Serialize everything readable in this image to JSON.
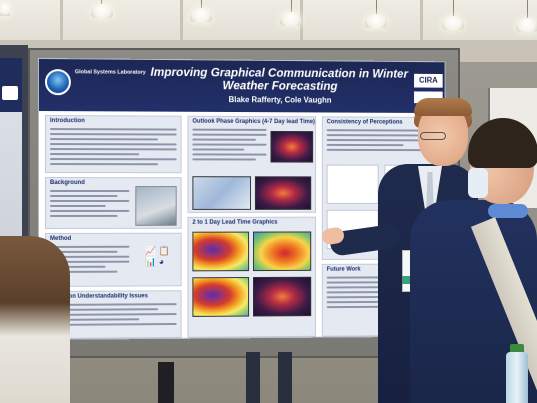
{
  "poster": {
    "title": "Improving Graphical Communication in Winter Weather Forecasting",
    "authors": "Blake Rafferty, Cole Vaughn",
    "org_label": "Global Systems Laboratory",
    "partner_logo_text": "CIRA",
    "sections": {
      "introduction": "Introduction",
      "background": "Background",
      "method": "Method",
      "common_understandability_issues": "Common Understandability Issues",
      "outlook_phase_graphics": "Outlook Phase Graphics (4-7 Day lead Time)",
      "short_lead_time_graphics": "2 to 1 Day Lead Time Graphics",
      "consistency_of_perceptions": "Consistency of Perceptions",
      "future_work": "Future Work"
    }
  },
  "scene_objects": {
    "lamp_count": 7,
    "people": [
      "presenter",
      "listener",
      "left-person"
    ]
  }
}
